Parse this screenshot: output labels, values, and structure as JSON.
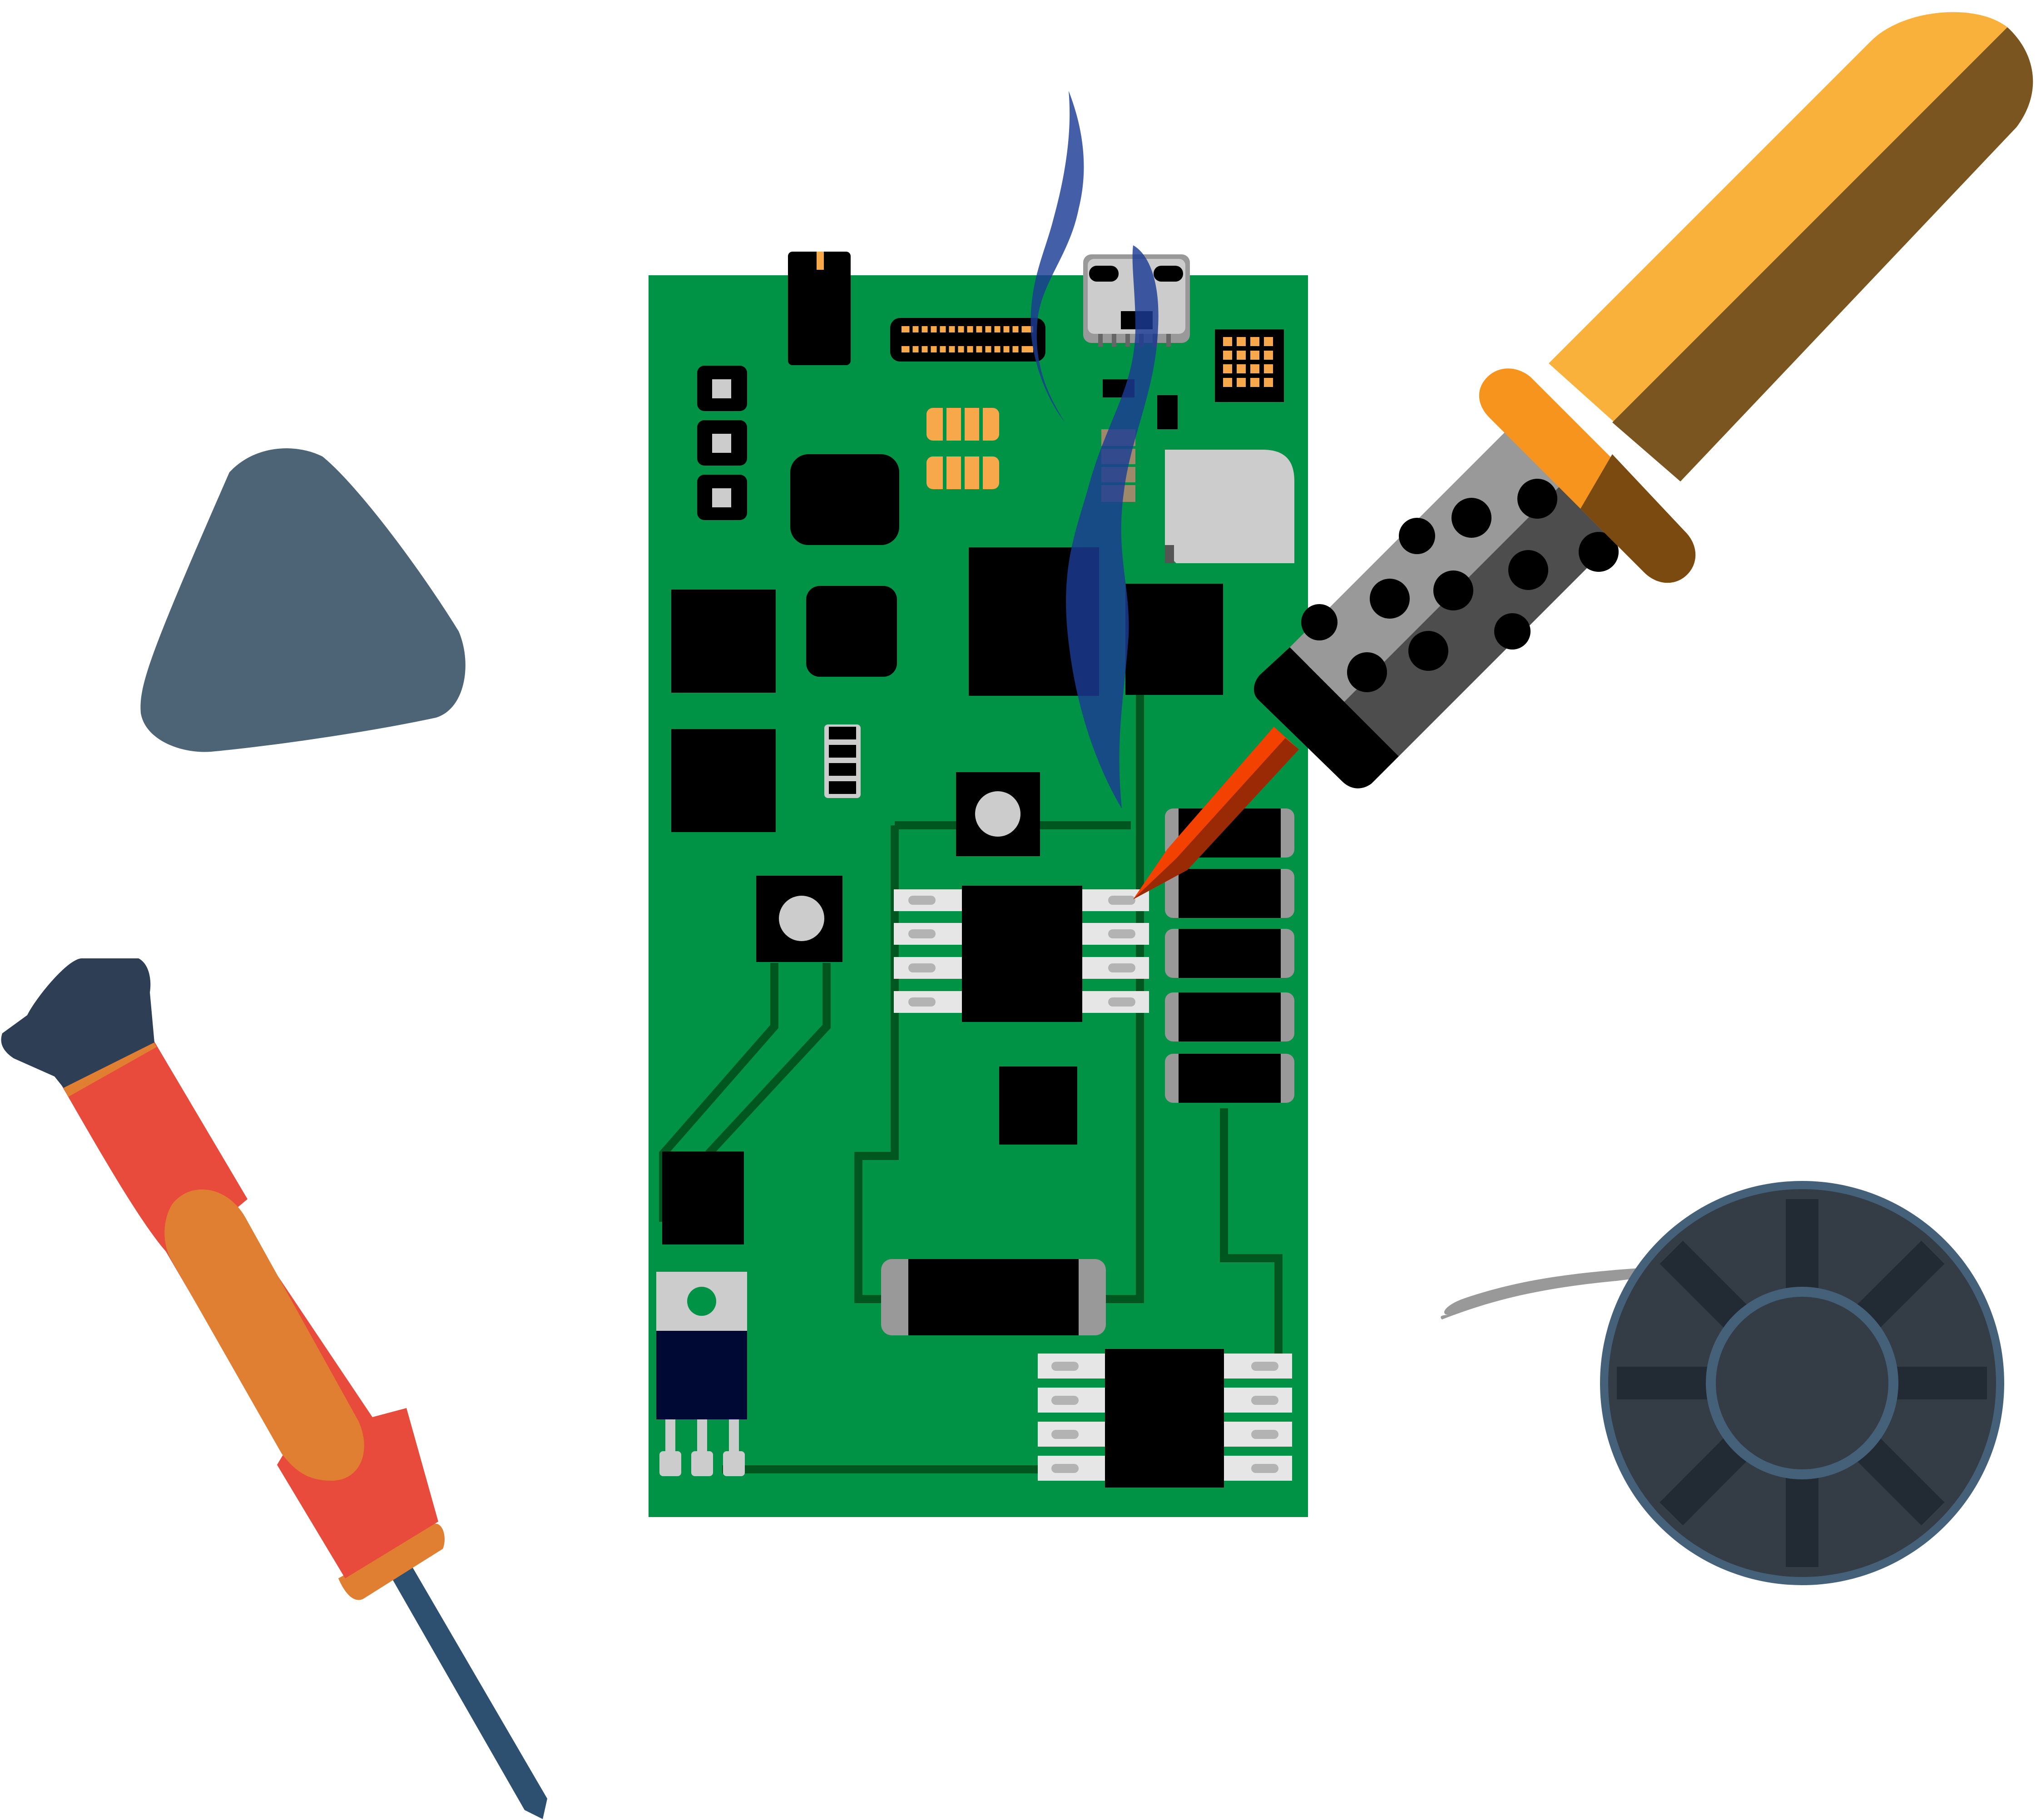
{
  "scene": {
    "background": "#ffffff",
    "description_free": true
  },
  "palette": {
    "pcb_green": "#009245",
    "trace_dark": "#00561f",
    "chip_black": "#000000",
    "pad_light": "#e6e6e6",
    "pad_mid": "#cccccc",
    "gold": "#f7a84b",
    "smoke_blue": "#1b3c94",
    "iron_handle": "#f9b13b",
    "iron_handle_shadow": "#7a5520",
    "iron_collar": "#f7941d",
    "iron_grip_light": "#999999",
    "iron_grip_dark": "#4d4d4d",
    "iron_tip": "#f24100",
    "pick_gray": "#4d6477",
    "driver_red": "#e84b3c",
    "driver_orange": "#e07f32",
    "driver_cap": "#2d3e55",
    "driver_shaft": "#2d5070",
    "spool_dark": "#343d46",
    "spool_ring": "#45617a",
    "spool_spoke": "#222b33",
    "wire_gray": "#999999",
    "regulator_body": "#000933",
    "regulator_tab": "#cccccc"
  },
  "icons": {
    "pcb": "circuit-board-icon",
    "iron": "soldering-iron-icon",
    "pick": "guitar-pick-icon",
    "screwdriver": "screwdriver-icon",
    "spool": "solder-wire-spool-icon",
    "smoke": "smoke-icon"
  }
}
